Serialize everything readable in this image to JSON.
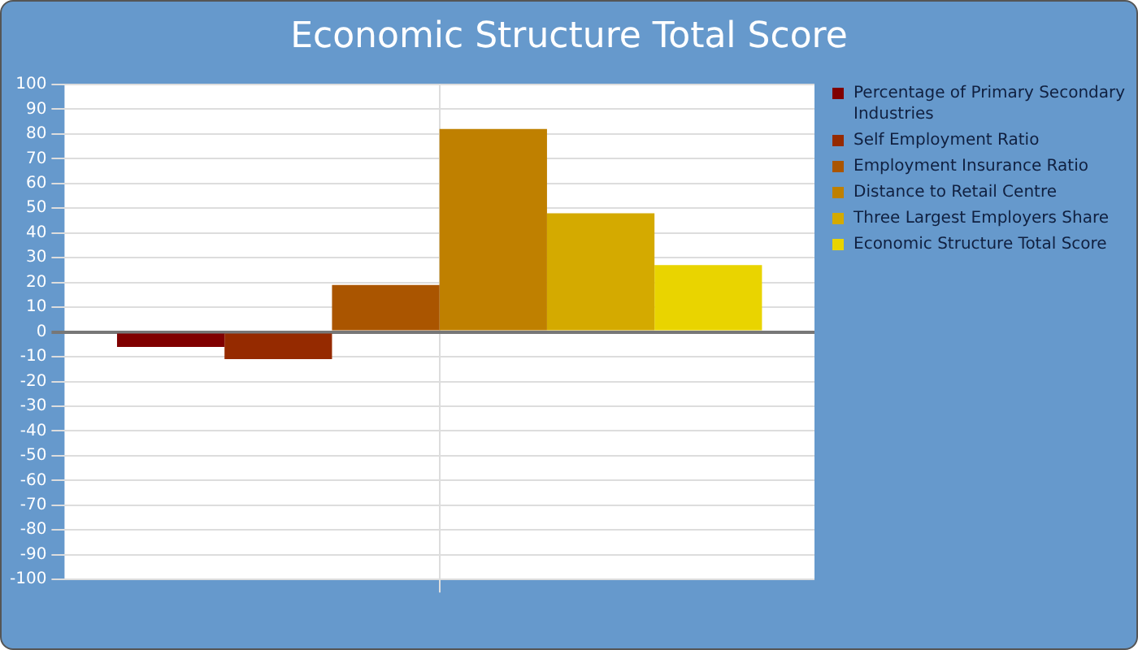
{
  "chart_data": {
    "type": "bar",
    "title": "Economic Structure Total Score",
    "categories": [
      null
    ],
    "series": [
      {
        "name": "Percentage of Primary Secondary Industries",
        "color": "#800000",
        "values": [
          -6
        ]
      },
      {
        "name": "Self Employment Ratio",
        "color": "#952a00",
        "values": [
          -11
        ]
      },
      {
        "name": "Employment Insurance Ratio",
        "color": "#aa5500",
        "values": [
          19
        ]
      },
      {
        "name": "Distance to Retail Centre",
        "color": "#bf8000",
        "values": [
          82
        ]
      },
      {
        "name": "Three Largest Employers Share",
        "color": "#d4aa00",
        "values": [
          48
        ]
      },
      {
        "name": "Economic Structure Total Score",
        "color": "#e9d400",
        "values": [
          27
        ]
      }
    ],
    "ylim": [
      -100,
      100
    ],
    "yticks": [
      -100,
      -90,
      -80,
      -70,
      -60,
      -50,
      -40,
      -30,
      -20,
      -10,
      0,
      10,
      20,
      30,
      40,
      50,
      60,
      70,
      80,
      90,
      100
    ],
    "grid": true,
    "legend": "right"
  }
}
